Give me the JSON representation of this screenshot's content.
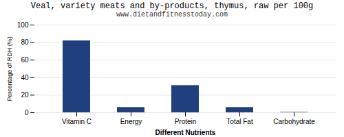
{
  "chart_data": {
    "type": "bar",
    "title": "Veal, variety meats and by-products, thymus, raw per 100g",
    "subtitle": "www.dietandfitnesstoday.com",
    "xlabel": "Different Nutrients",
    "ylabel": "Percentage of RDH (%)",
    "categories": [
      "Vitamin C",
      "Energy",
      "Protein",
      "Total Fat",
      "Carbohydrate"
    ],
    "values": [
      82,
      6,
      31,
      6,
      0.5
    ],
    "color": "#1F3F7F",
    "ylim": [
      0,
      100
    ],
    "yticks": [
      0,
      20,
      40,
      60,
      80,
      100
    ],
    "grid": true
  }
}
